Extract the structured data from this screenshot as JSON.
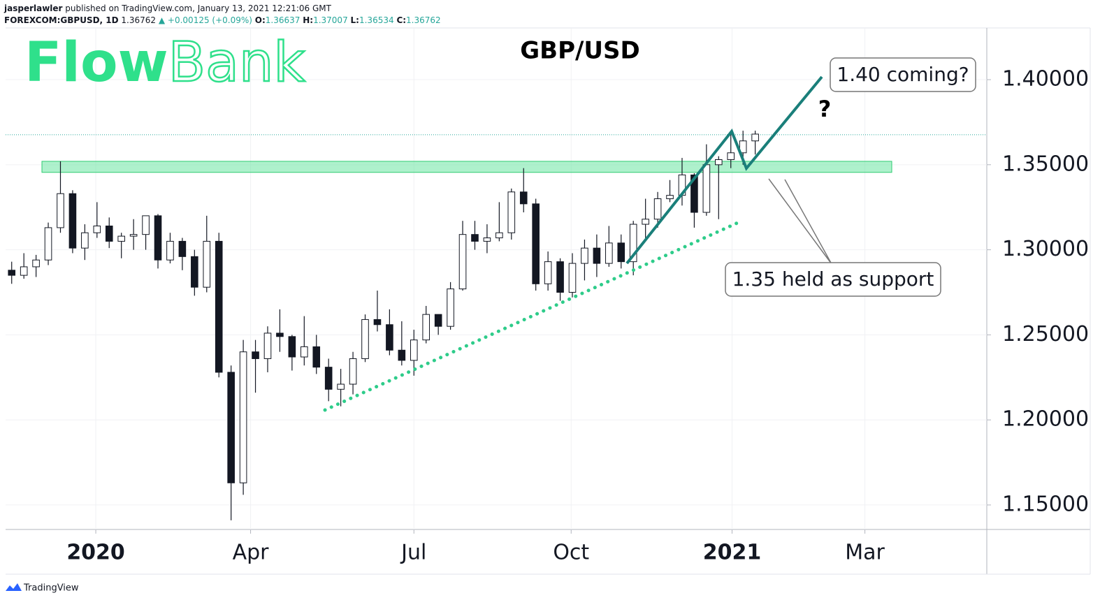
{
  "header": {
    "user": "jasperlawler",
    "published": "published on TradingView.com, January 13, 2021 12:21:06 GMT",
    "symbol": "FOREXCOM:GBPUSD, 1D",
    "last": "1.36762",
    "change": "▲ +0.00125 (+0.09%)",
    "open_label": "O:",
    "open": "1.36637",
    "high_label": "H:",
    "high": "1.37007",
    "low_label": "L:",
    "low": "1.36534",
    "close_label": "C:",
    "close": "1.36762"
  },
  "logo": {
    "bold": "Flow",
    "light": "Bank"
  },
  "footer": "TradingView",
  "chart_data": {
    "type": "candlestick",
    "title": "GBP/USD",
    "annotations": [
      "1.40 coming?",
      "?",
      "1.35 held as support"
    ],
    "up_color": "#ffffff",
    "down_color": "#131722",
    "zone": {
      "from": 1.3455,
      "to": 1.352,
      "color": "#5ee39a"
    },
    "last_price": 1.36762,
    "open": [
      1.288,
      1.285,
      1.29,
      1.294,
      1.313,
      1.333,
      1.301,
      1.31,
      1.314,
      1.305,
      1.308,
      1.309,
      1.32,
      1.294,
      1.305,
      1.296,
      1.278,
      1.305,
      1.228,
      1.163,
      1.24,
      1.236,
      1.251,
      1.249,
      1.237,
      1.243,
      1.231,
      1.218,
      1.221,
      1.236,
      1.259,
      1.256,
      1.241,
      1.235,
      1.247,
      1.262,
      1.255,
      1.277,
      1.309,
      1.305,
      1.307,
      1.31,
      1.334,
      1.327,
      1.28,
      1.293,
      1.275,
      1.292,
      1.301,
      1.292,
      1.304,
      1.293,
      1.315,
      1.318,
      1.33,
      1.332,
      1.344,
      1.322,
      1.35,
      1.353,
      1.357,
      1.364
    ],
    "high": [
      1.293,
      1.298,
      1.297,
      1.316,
      1.352,
      1.335,
      1.315,
      1.328,
      1.319,
      1.31,
      1.318,
      1.32,
      1.321,
      1.31,
      1.307,
      1.3,
      1.32,
      1.31,
      1.232,
      1.247,
      1.247,
      1.255,
      1.265,
      1.25,
      1.261,
      1.25,
      1.236,
      1.23,
      1.24,
      1.262,
      1.276,
      1.265,
      1.258,
      1.253,
      1.267,
      1.262,
      1.281,
      1.317,
      1.317,
      1.315,
      1.328,
      1.336,
      1.348,
      1.33,
      1.299,
      1.295,
      1.298,
      1.306,
      1.309,
      1.314,
      1.309,
      1.317,
      1.33,
      1.334,
      1.341,
      1.354,
      1.345,
      1.362,
      1.355,
      1.37,
      1.37,
      1.37
    ],
    "low": [
      1.28,
      1.283,
      1.284,
      1.291,
      1.31,
      1.298,
      1.294,
      1.307,
      1.301,
      1.295,
      1.3,
      1.3,
      1.289,
      1.292,
      1.288,
      1.273,
      1.275,
      1.225,
      1.141,
      1.156,
      1.216,
      1.228,
      1.24,
      1.229,
      1.232,
      1.227,
      1.211,
      1.208,
      1.215,
      1.234,
      1.252,
      1.238,
      1.232,
      1.226,
      1.245,
      1.25,
      1.253,
      1.276,
      1.3,
      1.298,
      1.305,
      1.306,
      1.322,
      1.276,
      1.276,
      1.27,
      1.272,
      1.282,
      1.284,
      1.29,
      1.289,
      1.285,
      1.307,
      1.313,
      1.328,
      1.326,
      1.313,
      1.32,
      1.318,
      1.348,
      1.35,
      1.356
    ],
    "close": [
      1.285,
      1.29,
      1.294,
      1.313,
      1.333,
      1.301,
      1.31,
      1.314,
      1.305,
      1.308,
      1.309,
      1.32,
      1.294,
      1.305,
      1.296,
      1.278,
      1.305,
      1.228,
      1.163,
      1.24,
      1.236,
      1.251,
      1.249,
      1.237,
      1.243,
      1.231,
      1.218,
      1.221,
      1.236,
      1.259,
      1.256,
      1.241,
      1.235,
      1.247,
      1.262,
      1.255,
      1.277,
      1.309,
      1.305,
      1.307,
      1.31,
      1.334,
      1.327,
      1.28,
      1.293,
      1.275,
      1.292,
      1.301,
      1.292,
      1.304,
      1.293,
      1.315,
      1.318,
      1.33,
      1.332,
      1.344,
      1.322,
      1.35,
      1.353,
      1.357,
      1.364,
      1.368
    ],
    "xlim": [
      -0.5,
      80
    ],
    "xticks": [
      {
        "value": 6.9,
        "label": "2020"
      },
      {
        "value": 19.6,
        "label": "Apr"
      },
      {
        "value": 33.0,
        "label": "Jul"
      },
      {
        "value": 45.9,
        "label": "Oct"
      },
      {
        "value": 59.1,
        "label": "2021"
      },
      {
        "value": 70.0,
        "label": "Mar"
      }
    ],
    "ylim": [
      1.1356,
      1.4304
    ],
    "yticks": [
      {
        "value": 1.15,
        "label": "1.15000"
      },
      {
        "value": 1.2,
        "label": "1.20000"
      },
      {
        "value": 1.25,
        "label": "1.25000"
      },
      {
        "value": 1.3,
        "label": "1.30000"
      },
      {
        "value": 1.35,
        "label": "1.35000"
      },
      {
        "value": 1.4,
        "label": "1.40000"
      }
    ],
    "grid": true
  }
}
